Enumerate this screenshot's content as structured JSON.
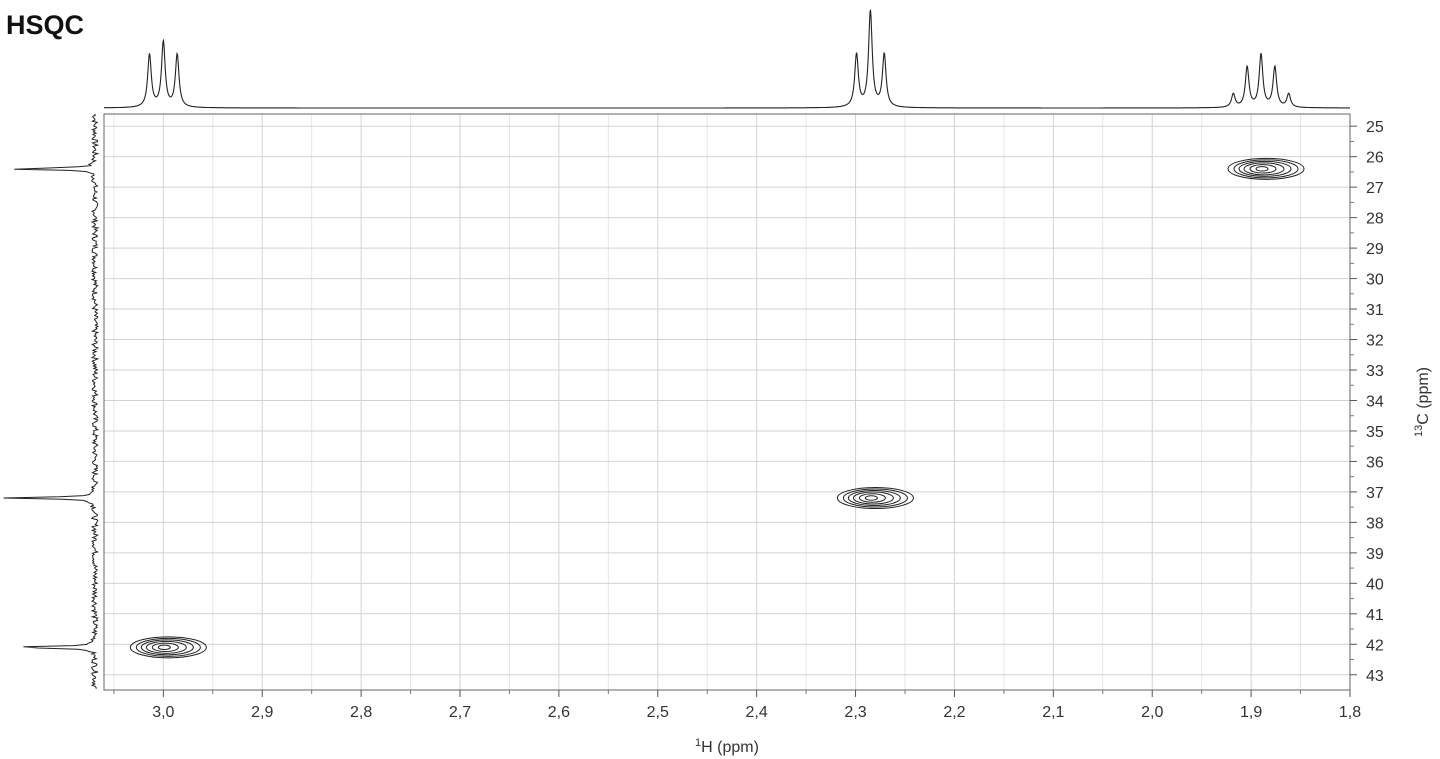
{
  "title": "HSQC",
  "chart_data": {
    "type": "heatmap",
    "subtype": "2D NMR HSQC contour plot",
    "title": "HSQC",
    "xlabel": {
      "sup": "1",
      "text": "H (ppm)"
    },
    "ylabel": {
      "sup": "13",
      "text": "C (ppm)"
    },
    "xlim": [
      3.06,
      1.8
    ],
    "ylim": [
      24.6,
      43.5
    ],
    "x_axis_reversed": true,
    "x_ticks": [
      "3,0",
      "2,9",
      "2,8",
      "2,7",
      "2,6",
      "2,5",
      "2,4",
      "2,3",
      "2,2",
      "2,1",
      "2,0",
      "1,9",
      "1,8"
    ],
    "x_tick_values": [
      3.0,
      2.9,
      2.8,
      2.7,
      2.6,
      2.5,
      2.4,
      2.3,
      2.2,
      2.1,
      2.0,
      1.9,
      1.8
    ],
    "y_ticks": [
      "25",
      "26",
      "27",
      "28",
      "29",
      "30",
      "31",
      "32",
      "33",
      "34",
      "35",
      "36",
      "37",
      "38",
      "39",
      "40",
      "41",
      "42",
      "43"
    ],
    "y_tick_values": [
      25,
      26,
      27,
      28,
      29,
      30,
      31,
      32,
      33,
      34,
      35,
      36,
      37,
      38,
      39,
      40,
      41,
      42,
      43
    ],
    "y_axis_position": "right",
    "grid": true,
    "cross_peaks": [
      {
        "h_ppm": 3.0,
        "c_ppm": 42.1
      },
      {
        "h_ppm": 2.285,
        "c_ppm": 37.2
      },
      {
        "h_ppm": 1.89,
        "c_ppm": 26.4
      }
    ],
    "proton_projection": [
      {
        "multiplicity": "triplet",
        "peaks_ppm": [
          3.014,
          3.0,
          2.986
        ]
      },
      {
        "multiplicity": "triplet",
        "peaks_ppm": [
          2.299,
          2.285,
          2.271
        ]
      },
      {
        "multiplicity": "quintet",
        "peaks_ppm": [
          1.918,
          1.904,
          1.89,
          1.876,
          1.862
        ]
      }
    ],
    "carbon_projection_peaks_ppm": [
      26.4,
      37.2,
      42.1
    ]
  }
}
